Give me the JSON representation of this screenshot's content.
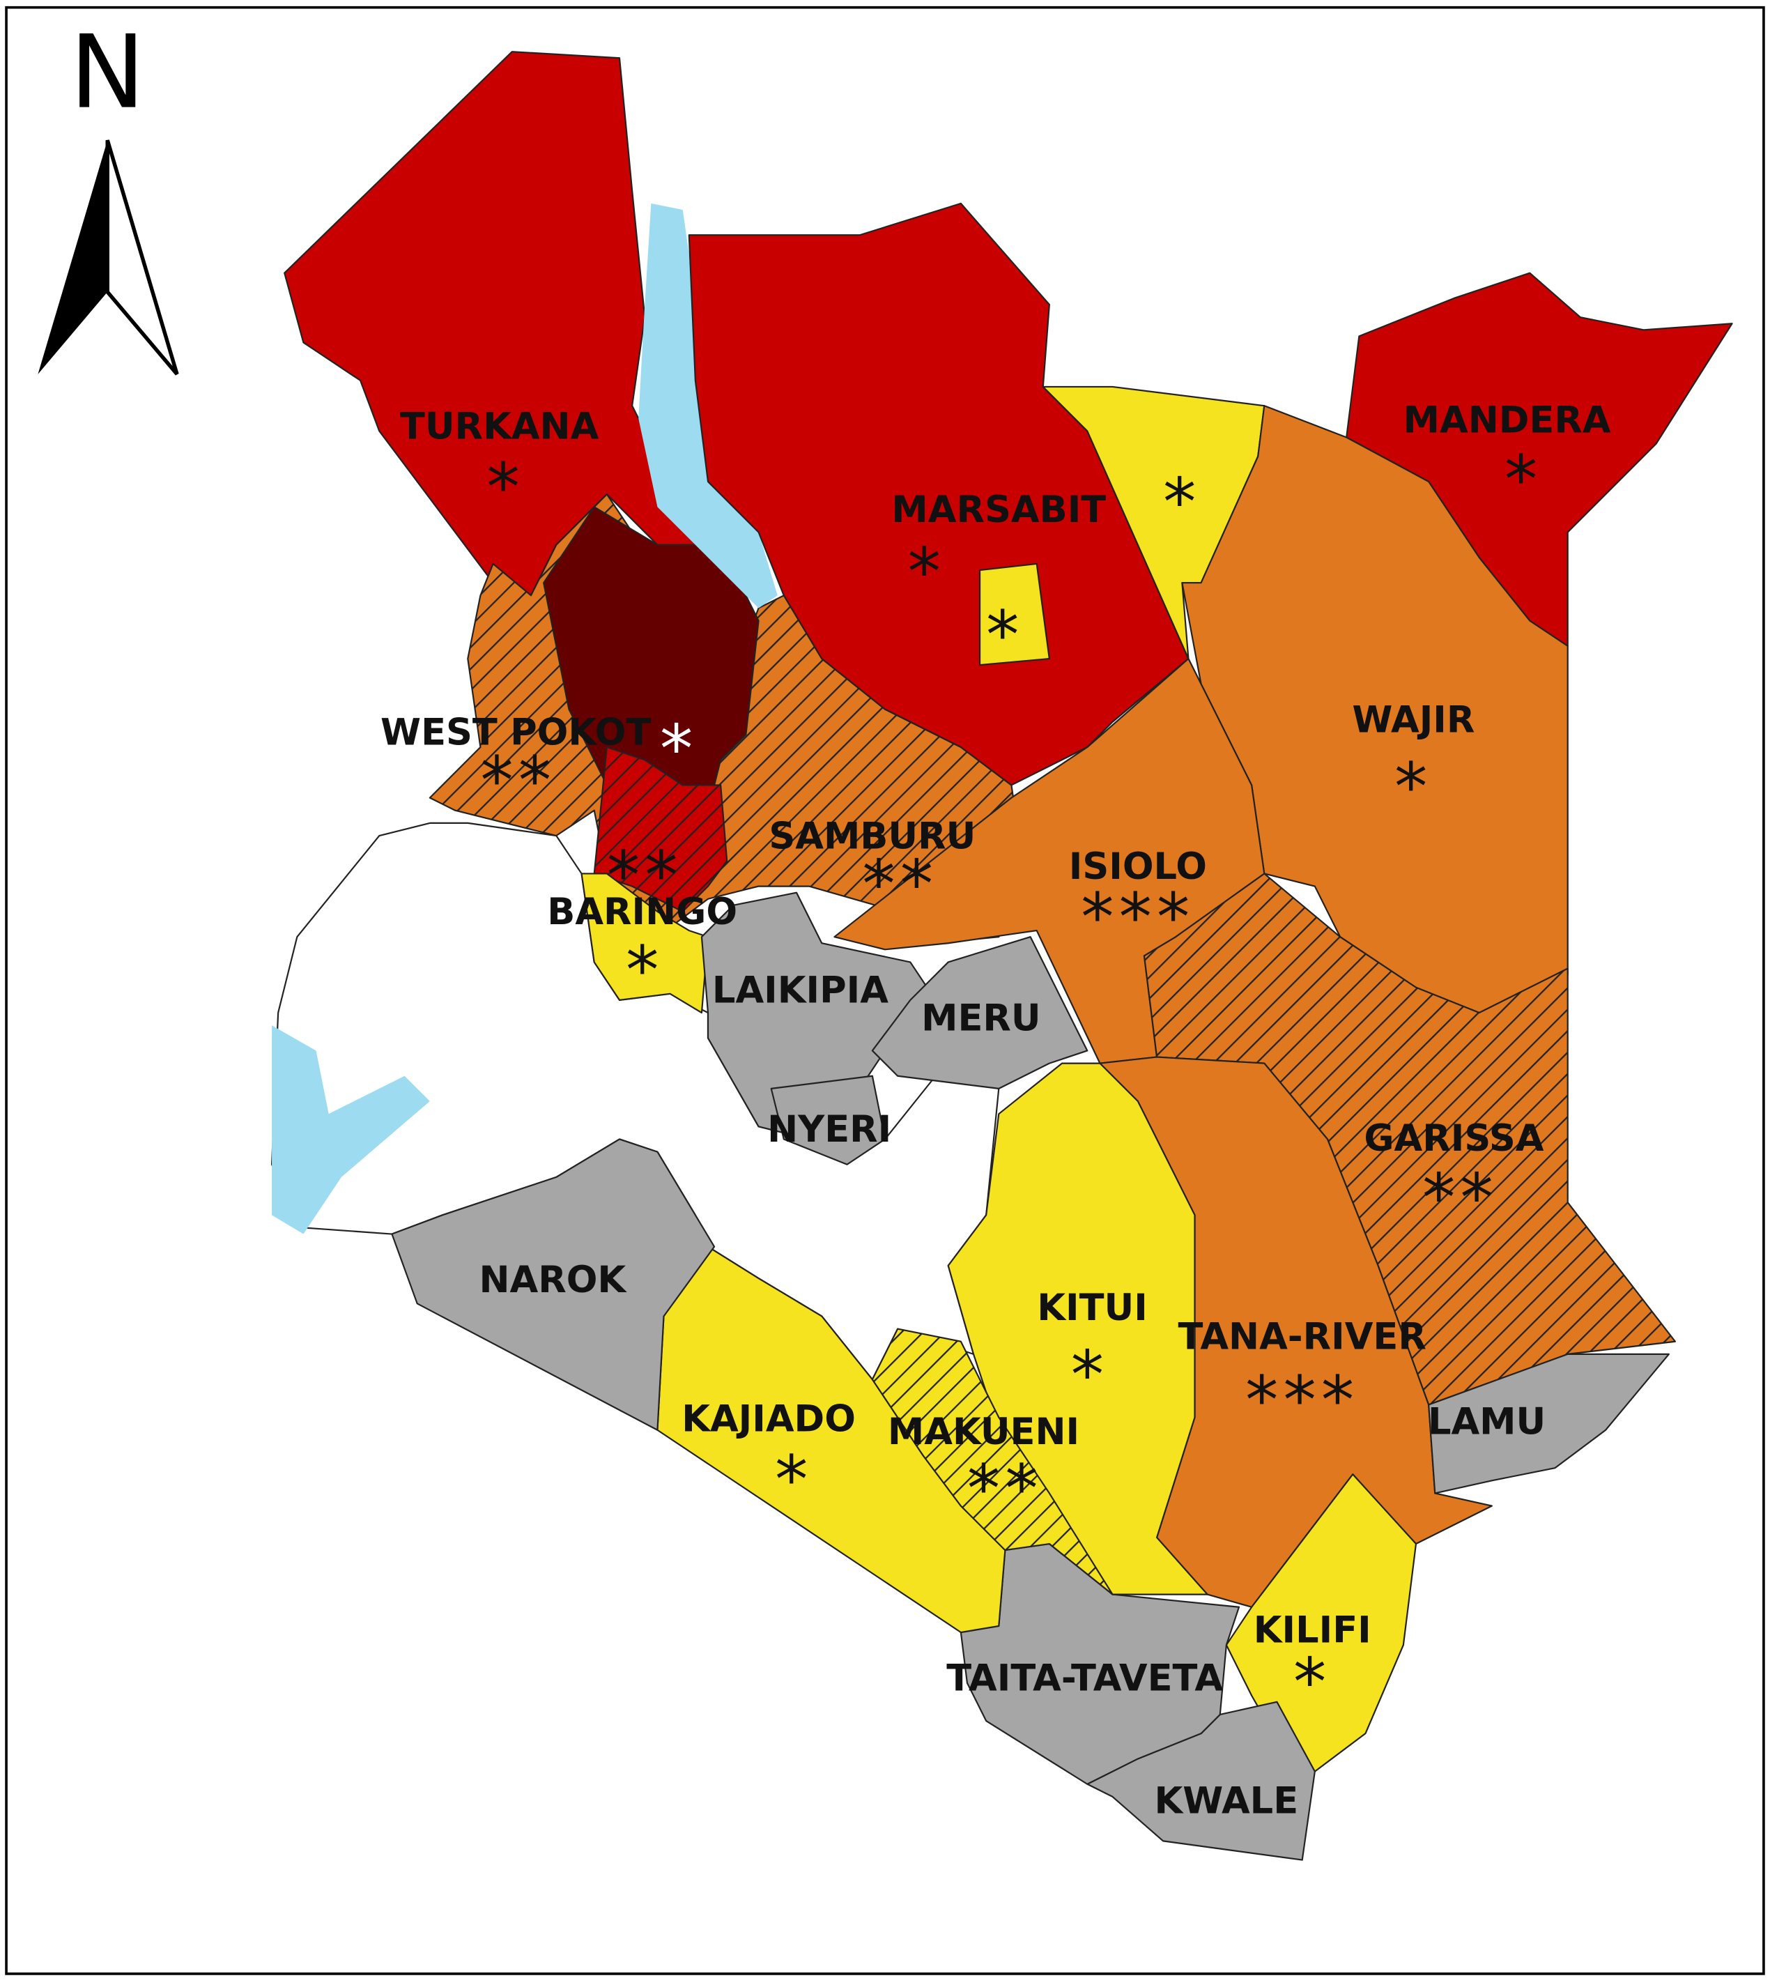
{
  "north_label": "N",
  "regions": [
    {
      "name": "TURKANA",
      "marker": "*"
    },
    {
      "name": "MARSABIT",
      "marker": "*"
    },
    {
      "name": "MANDERA",
      "marker": "*"
    },
    {
      "name": "WEST POKOT",
      "marker": "**"
    },
    {
      "name": "BARINGO",
      "marker": "*"
    },
    {
      "name": "SAMBURU",
      "marker": "**"
    },
    {
      "name": "WAJIR",
      "marker": "*"
    },
    {
      "name": "ISIOLO",
      "marker": "***"
    },
    {
      "name": "LAIKIPIA"
    },
    {
      "name": "MERU"
    },
    {
      "name": "NYERI"
    },
    {
      "name": "GARISSA",
      "marker": "**"
    },
    {
      "name": "NAROK"
    },
    {
      "name": "KITUI",
      "marker": "*"
    },
    {
      "name": "TANA-RIVER",
      "marker": "***"
    },
    {
      "name": "LAMU"
    },
    {
      "name": "KAJIADO",
      "marker": "*"
    },
    {
      "name": "MAKUENI",
      "marker": "**"
    },
    {
      "name": "KILIFI",
      "marker": "*"
    },
    {
      "name": "TAITA-TAVETA"
    },
    {
      "name": "KWALE"
    }
  ],
  "unlabeled_markers": [
    "*",
    "*",
    "*",
    "**"
  ]
}
